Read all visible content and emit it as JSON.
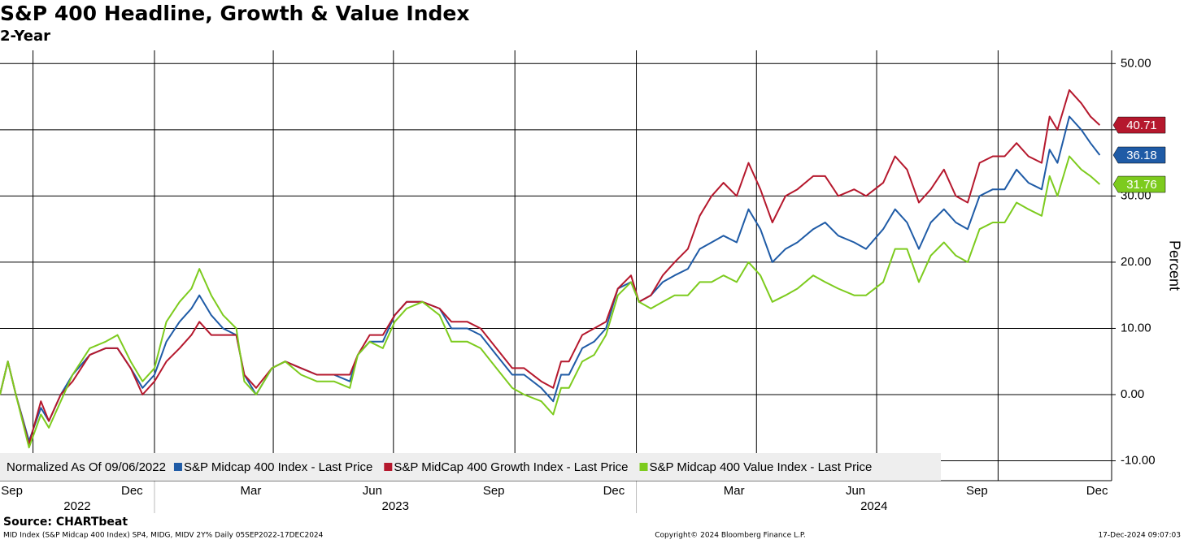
{
  "chart_data": {
    "type": "line",
    "title": "S&P 400 Headline, Growth & Value Index",
    "subtitle": "2-Year",
    "y_label": "Percent",
    "legend_note": "Normalized As Of 09/06/2022",
    "source": "Source: CHARTbeat",
    "footer_left": "MID Index (S&P Midcap 400 Index) SP4, MIDG, MIDV 2Y%  Daily 05SEP2022-17DEC2024",
    "footer_center": "Copyright© 2024 Bloomberg Finance L.P.",
    "footer_right": "17-Dec-2024 09:07:03",
    "x": [
      "2022-09-06",
      "2022-09-12",
      "2022-09-18",
      "2022-09-28",
      "2022-10-07",
      "2022-10-13",
      "2022-10-22",
      "2022-10-31",
      "2022-11-13",
      "2022-11-25",
      "2022-12-04",
      "2022-12-14",
      "2022-12-23",
      "2023-01-01",
      "2023-01-10",
      "2023-01-20",
      "2023-01-29",
      "2023-02-04",
      "2023-02-13",
      "2023-02-22",
      "2023-03-04",
      "2023-03-10",
      "2023-03-19",
      "2023-03-31",
      "2023-04-10",
      "2023-04-22",
      "2023-05-04",
      "2023-05-17",
      "2023-05-29",
      "2023-06-04",
      "2023-06-13",
      "2023-06-23",
      "2023-07-02",
      "2023-07-11",
      "2023-07-23",
      "2023-08-05",
      "2023-08-14",
      "2023-08-26",
      "2023-09-05",
      "2023-09-17",
      "2023-09-29",
      "2023-10-08",
      "2023-10-21",
      "2023-10-30",
      "2023-11-05",
      "2023-11-11",
      "2023-11-21",
      "2023-11-30",
      "2023-12-09",
      "2023-12-18",
      "2023-12-28",
      "2024-01-03",
      "2024-01-12",
      "2024-01-21",
      "2024-01-30",
      "2024-02-09",
      "2024-02-18",
      "2024-02-27",
      "2024-03-07",
      "2024-03-17",
      "2024-03-26",
      "2024-04-04",
      "2024-04-13",
      "2024-04-23",
      "2024-05-02",
      "2024-05-14",
      "2024-05-23",
      "2024-06-02",
      "2024-06-14",
      "2024-06-23",
      "2024-07-06",
      "2024-07-15",
      "2024-07-24",
      "2024-08-02",
      "2024-08-11",
      "2024-08-21",
      "2024-08-30",
      "2024-09-08",
      "2024-09-17",
      "2024-09-27",
      "2024-10-06",
      "2024-10-15",
      "2024-10-24",
      "2024-11-03",
      "2024-11-09",
      "2024-11-15",
      "2024-11-24",
      "2024-12-03",
      "2024-12-10",
      "2024-12-17"
    ],
    "series": [
      {
        "name": "S&P Midcap 400 Index - Last Price",
        "color": "#1f5ba6",
        "values": [
          0,
          5,
          0,
          -7,
          -2,
          -4,
          0,
          3,
          6,
          7,
          7,
          4,
          1,
          3,
          8,
          11,
          13,
          15,
          12,
          10,
          9,
          3,
          0,
          4,
          5,
          4,
          3,
          3,
          2,
          6,
          8,
          8,
          12,
          14,
          14,
          13,
          10,
          10,
          9,
          6,
          3,
          3,
          1,
          -1,
          3,
          3,
          7,
          8,
          10,
          16,
          17,
          14,
          15,
          17,
          18,
          19,
          22,
          23,
          24,
          23,
          28,
          25,
          20,
          22,
          23,
          25,
          26,
          24,
          23,
          22,
          25,
          28,
          26,
          22,
          26,
          28,
          26,
          25,
          30,
          31,
          31,
          34,
          32,
          31,
          37,
          35,
          42,
          40,
          38,
          36.18
        ]
      },
      {
        "name": "S&P MidCap 400 Growth Index - Last Price",
        "color": "#b5182d",
        "values": [
          0,
          5,
          0,
          -7.5,
          -1,
          -4,
          0,
          2,
          6,
          7,
          7,
          4,
          0,
          2,
          5,
          7,
          9,
          11,
          9,
          9,
          9,
          3,
          1,
          4,
          5,
          4,
          3,
          3,
          3,
          6,
          9,
          9,
          12,
          14,
          14,
          13,
          11,
          11,
          10,
          7,
          4,
          4,
          2,
          1,
          5,
          5,
          9,
          10,
          11,
          16,
          18,
          14,
          15,
          18,
          20,
          22,
          27,
          30,
          32,
          30,
          35,
          31,
          26,
          30,
          31,
          33,
          33,
          30,
          31,
          30,
          32,
          36,
          34,
          29,
          31,
          34,
          30,
          29,
          35,
          36,
          36,
          38,
          36,
          35,
          42,
          40,
          46,
          44,
          42,
          40.71
        ]
      },
      {
        "name": "S&P Midcap 400 Value Index - Last Price",
        "color": "#7dcb1e",
        "values": [
          0,
          5,
          0,
          -8,
          -3,
          -5,
          -1,
          3,
          7,
          8,
          9,
          5,
          2,
          4,
          11,
          14,
          16,
          19,
          15,
          12,
          10,
          2,
          0,
          4,
          5,
          3,
          2,
          2,
          1,
          6,
          8,
          7,
          11,
          13,
          14,
          12,
          8,
          8,
          7,
          4,
          1,
          0,
          -1,
          -3,
          1,
          1,
          5,
          6,
          9,
          15,
          17,
          14,
          13,
          14,
          15,
          15,
          17,
          17,
          18,
          17,
          20,
          18,
          14,
          15,
          16,
          18,
          17,
          16,
          15,
          15,
          17,
          22,
          22,
          17,
          21,
          23,
          21,
          20,
          25,
          26,
          26,
          29,
          28,
          27,
          33,
          30,
          36,
          34,
          33,
          31.76
        ]
      }
    ],
    "xlim": [
      "2022-09-06",
      "2024-12-26"
    ],
    "xticks": [
      {
        "value": "2022-09-15",
        "label": "Sep"
      },
      {
        "value": "2022-12-15",
        "label": "Dec"
      },
      {
        "value": "2023-03-15",
        "label": "Mar"
      },
      {
        "value": "2023-06-15",
        "label": "Jun"
      },
      {
        "value": "2023-09-15",
        "label": "Sep"
      },
      {
        "value": "2023-12-15",
        "label": "Dec"
      },
      {
        "value": "2024-03-15",
        "label": "Mar"
      },
      {
        "value": "2024-06-15",
        "label": "Jun"
      },
      {
        "value": "2024-09-15",
        "label": "Sep"
      },
      {
        "value": "2024-12-15",
        "label": "Dec"
      }
    ],
    "years": [
      "2022",
      "2023",
      "2024"
    ],
    "ylim": [
      -13,
      52
    ],
    "yticks": [
      {
        "value": -10,
        "label": "-10.00"
      },
      {
        "value": 0,
        "label": "0.00"
      },
      {
        "value": 10,
        "label": "10.00"
      },
      {
        "value": 20,
        "label": "20.00"
      },
      {
        "value": 30,
        "label": "30.00"
      },
      {
        "value": 40,
        "label": "40.00"
      },
      {
        "value": 50,
        "label": "50.00"
      }
    ],
    "grid": true
  }
}
